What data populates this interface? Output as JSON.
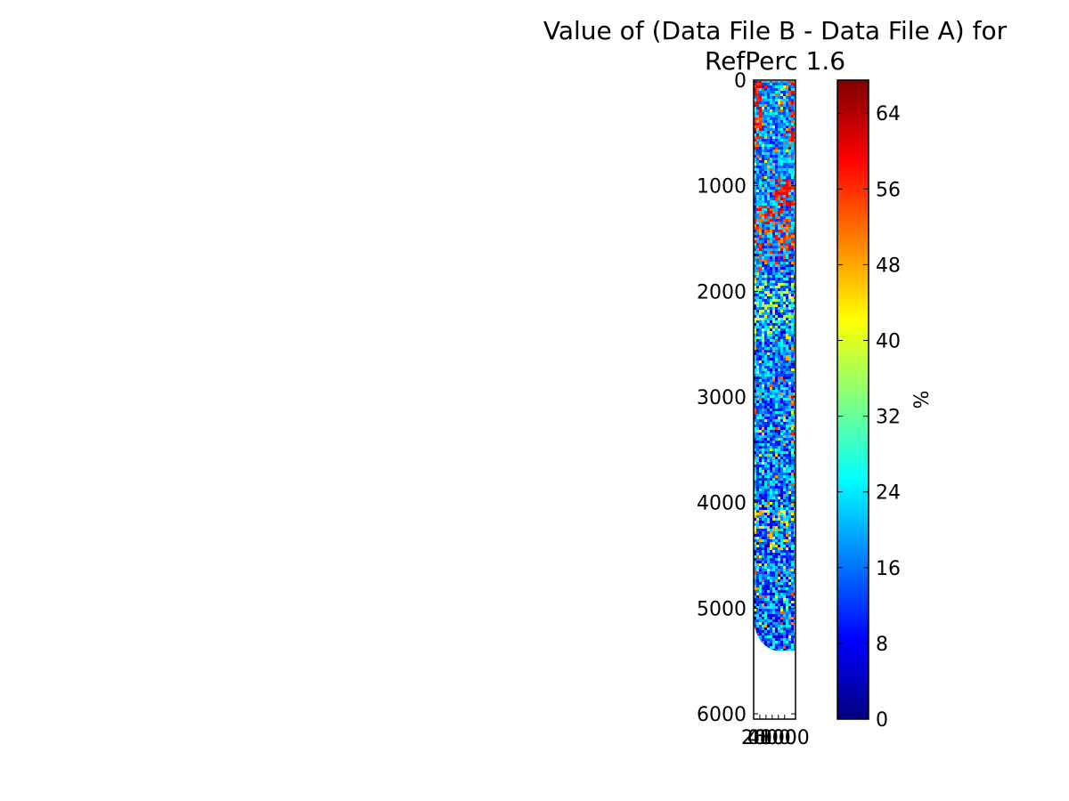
{
  "chart_data": {
    "type": "heatmap",
    "title_lines": [
      "Value of (Data File B - Data File A) for",
      "RefPerc 1.6"
    ],
    "xlabel": "",
    "ylabel": "",
    "y_ticks": [
      0,
      1000,
      2000,
      3000,
      4000,
      5000,
      6000
    ],
    "x_ticks": [
      "0",
      "200",
      "400",
      "600",
      "800",
      "1000"
    ],
    "ylim": [
      6050,
      0
    ],
    "xlim": [
      0,
      1354
    ],
    "data_extent_rows": 5400,
    "colorbar": {
      "label": "%",
      "ticks": [
        0,
        8,
        16,
        24,
        32,
        40,
        48,
        56,
        64
      ],
      "range": [
        0,
        67.5
      ],
      "colormap": "jet"
    },
    "colors": {
      "jet_stops": [
        "#00007f",
        "#0000ff",
        "#007fff",
        "#00ffff",
        "#7fff7f",
        "#ffff00",
        "#ff7f00",
        "#ff0000",
        "#7f0000"
      ]
    }
  }
}
